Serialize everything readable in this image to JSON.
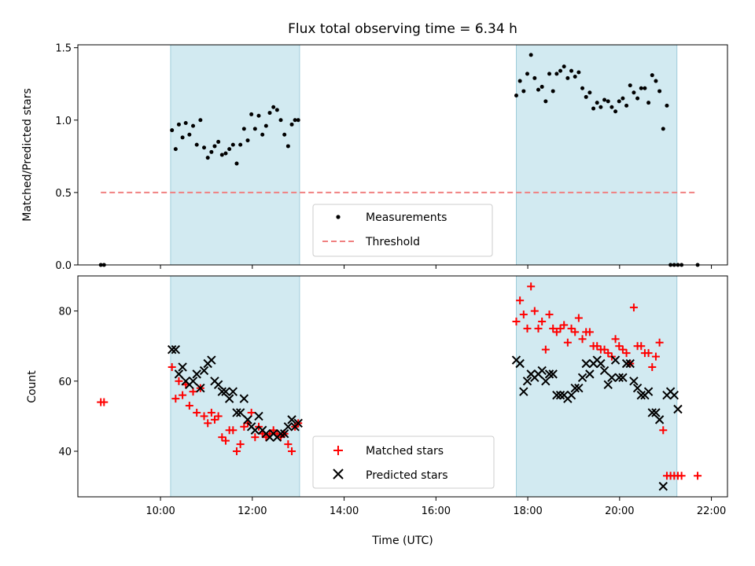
{
  "chart_data": [
    {
      "type": "scatter",
      "title": "Flux total observing time = 6.34 h",
      "xlabel": "",
      "ylabel": "Matched/Predicted stars",
      "x_unit": "hours UTC",
      "xlim": [
        8.2,
        22.35
      ],
      "ylim": [
        0,
        1.52
      ],
      "yticks": [
        0.0,
        0.5,
        1.0,
        1.5
      ],
      "ytick_labels": [
        "0.0",
        "0.5",
        "1.0",
        "1.5"
      ],
      "shaded_intervals": [
        [
          10.22,
          13.03
        ],
        [
          17.75,
          21.25
        ]
      ],
      "shade_color": "#add8e6",
      "legend": {
        "position": "bottom-center",
        "entries": [
          "Measurements",
          "Threshold"
        ]
      },
      "threshold": {
        "name": "Threshold",
        "value": 0.5,
        "x_range": [
          8.7,
          21.7
        ],
        "color": "#f08080",
        "style": "dashed"
      },
      "series": [
        {
          "name": "Measurements",
          "color": "#000000",
          "marker": "dot",
          "x": [
            8.7,
            8.77,
            10.25,
            10.33,
            10.4,
            10.48,
            10.55,
            10.63,
            10.71,
            10.79,
            10.87,
            10.95,
            11.03,
            11.11,
            11.18,
            11.26,
            11.34,
            11.42,
            11.5,
            11.58,
            11.66,
            11.74,
            11.82,
            11.9,
            11.98,
            12.06,
            12.14,
            12.22,
            12.3,
            12.38,
            12.46,
            12.54,
            12.62,
            12.7,
            12.78,
            12.86,
            12.93,
            13.0,
            17.75,
            17.83,
            17.91,
            17.99,
            18.07,
            18.15,
            18.23,
            18.31,
            18.39,
            18.47,
            18.55,
            18.63,
            18.71,
            18.79,
            18.87,
            18.95,
            19.03,
            19.11,
            19.19,
            19.27,
            19.35,
            19.43,
            19.51,
            19.59,
            19.67,
            19.75,
            19.83,
            19.91,
            19.99,
            20.07,
            20.15,
            20.23,
            20.31,
            20.39,
            20.47,
            20.55,
            20.63,
            20.71,
            20.79,
            20.87,
            20.95,
            21.03,
            21.11,
            21.19,
            21.27,
            21.35,
            21.7
          ],
          "y": [
            0.0,
            0.0,
            0.93,
            0.8,
            0.97,
            0.88,
            0.98,
            0.9,
            0.96,
            0.83,
            1.0,
            0.81,
            0.74,
            0.78,
            0.82,
            0.85,
            0.76,
            0.77,
            0.8,
            0.83,
            0.7,
            0.83,
            0.94,
            0.86,
            1.04,
            0.94,
            1.03,
            0.9,
            0.96,
            1.05,
            1.09,
            1.07,
            1.0,
            0.9,
            0.82,
            0.97,
            1.0,
            1.0,
            1.17,
            1.27,
            1.2,
            1.32,
            1.45,
            1.29,
            1.21,
            1.23,
            1.13,
            1.32,
            1.2,
            1.32,
            1.34,
            1.37,
            1.29,
            1.34,
            1.3,
            1.33,
            1.22,
            1.16,
            1.19,
            1.08,
            1.12,
            1.09,
            1.14,
            1.13,
            1.09,
            1.06,
            1.13,
            1.15,
            1.1,
            1.24,
            1.19,
            1.15,
            1.22,
            1.22,
            1.12,
            1.31,
            1.27,
            1.2,
            0.94,
            1.1,
            0.0,
            0.0,
            0.0,
            0.0,
            0.0
          ]
        }
      ]
    },
    {
      "type": "scatter",
      "title": "",
      "xlabel": "Time (UTC)",
      "ylabel": "Count",
      "x_unit": "hours UTC",
      "xlim": [
        8.2,
        22.35
      ],
      "ylim": [
        27,
        90
      ],
      "xticks": [
        10,
        12,
        14,
        16,
        18,
        20,
        22
      ],
      "xtick_labels": [
        "10:00",
        "12:00",
        "14:00",
        "16:00",
        "18:00",
        "20:00",
        "22:00"
      ],
      "yticks": [
        40,
        60,
        80
      ],
      "ytick_labels": [
        "40",
        "60",
        "80"
      ],
      "shaded_intervals": [
        [
          10.22,
          13.03
        ],
        [
          17.75,
          21.25
        ]
      ],
      "shade_color": "#add8e6",
      "legend": {
        "position": "bottom-center",
        "entries": [
          "Matched stars",
          "Predicted stars"
        ]
      },
      "series": [
        {
          "name": "Matched stars",
          "color": "#ff0000",
          "marker": "plus",
          "x": [
            8.7,
            8.77,
            10.25,
            10.33,
            10.4,
            10.48,
            10.55,
            10.63,
            10.71,
            10.79,
            10.87,
            10.95,
            11.03,
            11.11,
            11.18,
            11.26,
            11.34,
            11.42,
            11.5,
            11.58,
            11.66,
            11.74,
            11.82,
            11.9,
            11.98,
            12.06,
            12.14,
            12.22,
            12.3,
            12.38,
            12.46,
            12.54,
            12.62,
            12.7,
            12.78,
            12.86,
            12.93,
            13.0,
            17.75,
            17.83,
            17.91,
            17.99,
            18.07,
            18.15,
            18.23,
            18.31,
            18.39,
            18.47,
            18.55,
            18.63,
            18.71,
            18.79,
            18.87,
            18.95,
            19.03,
            19.11,
            19.19,
            19.27,
            19.35,
            19.43,
            19.51,
            19.59,
            19.67,
            19.75,
            19.83,
            19.91,
            19.99,
            20.07,
            20.15,
            20.23,
            20.31,
            20.39,
            20.47,
            20.55,
            20.63,
            20.71,
            20.79,
            20.87,
            20.95,
            21.03,
            21.11,
            21.19,
            21.27,
            21.35,
            21.7
          ],
          "y": [
            54,
            54,
            64,
            55,
            60,
            56,
            59,
            53,
            57,
            51,
            58,
            50,
            48,
            51,
            49,
            50,
            44,
            43,
            46,
            46,
            40,
            42,
            47,
            48,
            51,
            44,
            47,
            45,
            44,
            45,
            46,
            45,
            44,
            45,
            42,
            40,
            47,
            48,
            77,
            83,
            79,
            75,
            87,
            80,
            75,
            77,
            69,
            79,
            75,
            74,
            75,
            76,
            71,
            75,
            74,
            78,
            72,
            74,
            74,
            70,
            70,
            69,
            69,
            68,
            67,
            72,
            70,
            69,
            68,
            65,
            81,
            70,
            70,
            68,
            68,
            64,
            67,
            71,
            46,
            33,
            33,
            33,
            33,
            33,
            33
          ],
          "x_fix": true
        },
        {
          "name": "Predicted stars",
          "color": "#000000",
          "marker": "cross",
          "x": [
            10.25,
            10.33,
            10.4,
            10.48,
            10.55,
            10.63,
            10.71,
            10.79,
            10.87,
            10.95,
            11.03,
            11.11,
            11.18,
            11.26,
            11.34,
            11.42,
            11.5,
            11.58,
            11.66,
            11.74,
            11.82,
            11.9,
            11.98,
            12.06,
            12.14,
            12.22,
            12.3,
            12.38,
            12.46,
            12.54,
            12.62,
            12.7,
            12.78,
            12.86,
            12.93,
            13.0,
            17.75,
            17.83,
            17.91,
            17.99,
            18.07,
            18.15,
            18.23,
            18.31,
            18.39,
            18.47,
            18.55,
            18.63,
            18.71,
            18.79,
            18.87,
            18.95,
            19.03,
            19.11,
            19.19,
            19.27,
            19.35,
            19.43,
            19.51,
            19.59,
            19.67,
            19.75,
            19.83,
            19.91,
            19.99,
            20.07,
            20.15,
            20.23,
            20.31,
            20.39,
            20.47,
            20.55,
            20.63,
            20.71,
            20.79,
            20.87,
            20.95,
            21.03,
            21.11,
            21.19,
            21.27
          ],
          "y": [
            69,
            69,
            62,
            64,
            60,
            59,
            60,
            62,
            58,
            63,
            65,
            66,
            60,
            59,
            57,
            57,
            55,
            57,
            51,
            51,
            55,
            49,
            47,
            46,
            50,
            46,
            45,
            44,
            45,
            44,
            45,
            45,
            47,
            49,
            47,
            48,
            66,
            65,
            57,
            60,
            62,
            61,
            62,
            63,
            60,
            62,
            62,
            56,
            56,
            56,
            55,
            56,
            58,
            58,
            61,
            65,
            62,
            65,
            66,
            65,
            63,
            59,
            61,
            66,
            61,
            61,
            65,
            65,
            60,
            58,
            56,
            56,
            57,
            51,
            51,
            49,
            30,
            56,
            57,
            56,
            52
          ]
        }
      ]
    }
  ]
}
